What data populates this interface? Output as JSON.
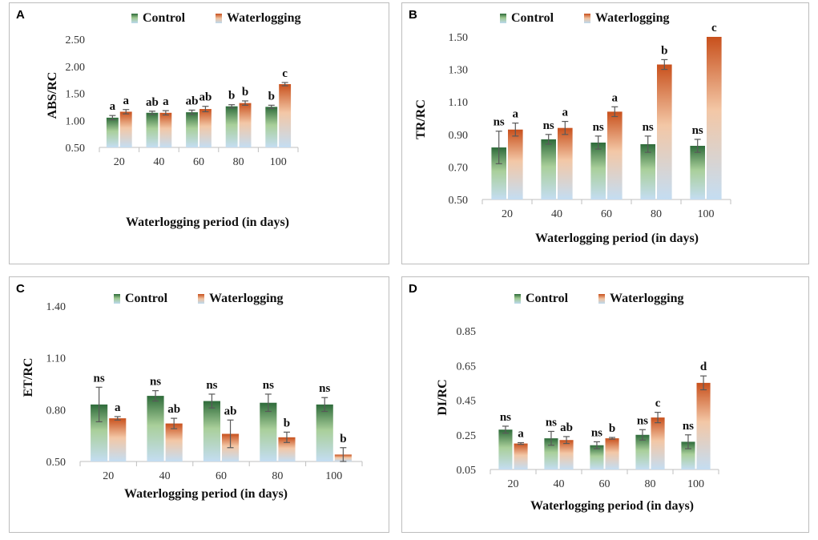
{
  "legend": {
    "control": "Control",
    "waterlogging": "Waterlogging"
  },
  "colors": {
    "control_dark": "#2e6b3a",
    "control_light": "#a9cf9a",
    "water_dark": "#c8501c",
    "water_light": "#f3c7a6",
    "base_blue": "#c4ddf2",
    "error": "#595959"
  },
  "chart_data": [
    {
      "panel": "A",
      "type": "bar",
      "title": "",
      "xlabel": "Waterlogging period (in days)",
      "ylabel": "ABS/RC",
      "categories": [
        "20",
        "40",
        "60",
        "80",
        "100"
      ],
      "ylim": [
        0.5,
        2.5
      ],
      "yticks": [
        "0.50",
        "1.00",
        "1.50",
        "2.00",
        "2.50"
      ],
      "series": [
        {
          "name": "Control",
          "values": [
            1.05,
            1.14,
            1.15,
            1.26,
            1.25
          ],
          "errors": [
            0.04,
            0.03,
            0.04,
            0.03,
            0.03
          ],
          "letters": [
            "a",
            "ab",
            "ab",
            "b",
            "b"
          ]
        },
        {
          "name": "Waterlogging",
          "values": [
            1.16,
            1.14,
            1.21,
            1.32,
            1.67
          ],
          "errors": [
            0.04,
            0.04,
            0.05,
            0.04,
            0.03
          ],
          "letters": [
            "a",
            "a",
            "ab",
            "b",
            "c"
          ]
        }
      ]
    },
    {
      "panel": "B",
      "type": "bar",
      "title": "",
      "xlabel": "Waterlogging period (in days)",
      "ylabel": "TR/RC",
      "categories": [
        "20",
        "40",
        "60",
        "80",
        "100"
      ],
      "ylim": [
        0.5,
        1.5
      ],
      "yticks": [
        "0.50",
        "0.70",
        "0.90",
        "1.10",
        "1.30",
        "1.50"
      ],
      "series": [
        {
          "name": "Control",
          "values": [
            0.82,
            0.87,
            0.85,
            0.84,
            0.83
          ],
          "errors": [
            0.1,
            0.03,
            0.04,
            0.05,
            0.04
          ],
          "letters": [
            "ns",
            "ns",
            "ns",
            "ns",
            "ns"
          ]
        },
        {
          "name": "Waterlogging",
          "values": [
            0.93,
            0.94,
            1.04,
            1.33,
            1.5
          ],
          "errors": [
            0.04,
            0.04,
            0.03,
            0.03,
            0.0
          ],
          "letters": [
            "a",
            "a",
            "a",
            "b",
            "c"
          ]
        }
      ]
    },
    {
      "panel": "C",
      "type": "bar",
      "title": "",
      "xlabel": "Waterlogging period (in days)",
      "ylabel": "ET/RC",
      "categories": [
        "20",
        "40",
        "60",
        "80",
        "100"
      ],
      "ylim": [
        0.5,
        1.4
      ],
      "yticks": [
        "0.50",
        "0.80",
        "1.10",
        "1.40"
      ],
      "series": [
        {
          "name": "Control",
          "values": [
            0.83,
            0.88,
            0.85,
            0.84,
            0.83
          ],
          "errors": [
            0.1,
            0.03,
            0.04,
            0.05,
            0.04
          ],
          "letters": [
            "ns",
            "ns",
            "ns",
            "ns",
            "ns"
          ]
        },
        {
          "name": "Waterlogging",
          "values": [
            0.75,
            0.72,
            0.66,
            0.64,
            0.54
          ],
          "errors": [
            0.01,
            0.03,
            0.08,
            0.03,
            0.04
          ],
          "letters": [
            "a",
            "ab",
            "ab",
            "b",
            "b"
          ]
        }
      ]
    },
    {
      "panel": "D",
      "type": "bar",
      "title": "",
      "xlabel": "Waterlogging period (in days)",
      "ylabel": "DI/RC",
      "categories": [
        "20",
        "40",
        "60",
        "80",
        "100"
      ],
      "ylim": [
        0.05,
        0.85
      ],
      "yticks": [
        "0.05",
        "0.25",
        "0.45",
        "0.65",
        "0.85"
      ],
      "series": [
        {
          "name": "Control",
          "values": [
            0.28,
            0.23,
            0.19,
            0.25,
            0.21
          ],
          "errors": [
            0.02,
            0.04,
            0.02,
            0.03,
            0.04
          ],
          "letters": [
            "ns",
            "ns",
            "ns",
            "ns",
            "ns"
          ]
        },
        {
          "name": "Waterlogging",
          "values": [
            0.2,
            0.22,
            0.23,
            0.35,
            0.55
          ],
          "errors": [
            0.005,
            0.02,
            0.005,
            0.03,
            0.04
          ],
          "letters": [
            "a",
            "ab",
            "b",
            "c",
            "d"
          ]
        }
      ]
    }
  ]
}
